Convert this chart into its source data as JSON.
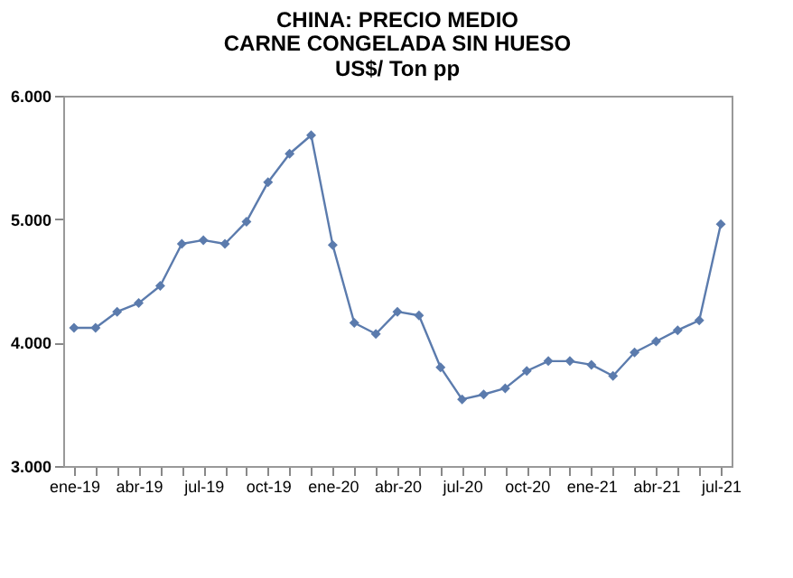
{
  "chart_data": {
    "type": "line",
    "title": "CHINA: PRECIO MEDIO",
    "subtitle": "CARNE CONGELADA SIN HUESO\nUS$/ Ton pp",
    "categories": [
      "ene-19",
      null,
      null,
      "abr-19",
      null,
      null,
      "jul-19",
      null,
      null,
      "oct-19",
      null,
      null,
      "ene-20",
      null,
      null,
      "abr-20",
      null,
      null,
      "jul-20",
      null,
      null,
      "oct-20",
      null,
      null,
      "ene-21",
      null,
      null,
      "abr-21",
      null,
      null,
      "jul-21"
    ],
    "series": [
      {
        "color": "#5b7bad",
        "values": [
          4120,
          4120,
          4250,
          4320,
          4460,
          4800,
          4830,
          4800,
          4980,
          5300,
          5530,
          5680,
          4790,
          4160,
          4070,
          4250,
          4220,
          3800,
          3540,
          3580,
          3630,
          3770,
          3850,
          3850,
          3820,
          3730,
          3920,
          4010,
          4100,
          4180,
          4960
        ]
      }
    ],
    "ylim": [
      3000,
      6000
    ],
    "yticks": [
      {
        "value": 3000,
        "label": "3.000"
      },
      {
        "value": 4000,
        "label": "4.000"
      },
      {
        "value": 5000,
        "label": "5.000"
      },
      {
        "value": 6000,
        "label": "6.000"
      }
    ],
    "marker": "diamond",
    "grid": false
  }
}
